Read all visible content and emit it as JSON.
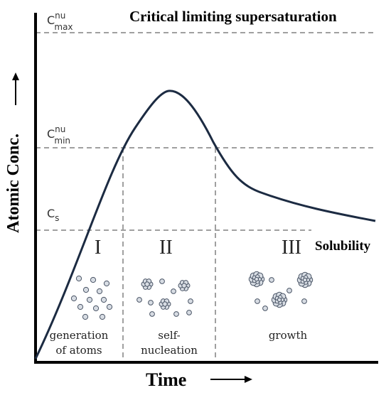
{
  "title": "Critical limiting supersaturation",
  "solubility_label": "Solubility",
  "y_axis_label": "Atomic Conc.",
  "x_axis_label": "Time",
  "levels": {
    "c_max": {
      "base": "C",
      "sup": "nu",
      "sub": "max"
    },
    "c_min": {
      "base": "C",
      "sup": "nu",
      "sub": "min"
    },
    "c_s": {
      "base": "C",
      "sub": "s"
    }
  },
  "stages": [
    {
      "numeral": "I",
      "lines": [
        "generation",
        "of atoms"
      ]
    },
    {
      "numeral": "II",
      "lines": [
        "self-",
        "nucleation"
      ]
    },
    {
      "numeral": "III",
      "lines": [
        "growth"
      ]
    }
  ],
  "colors": {
    "curve": "#1c2b42",
    "dashed": "#a0a0a0",
    "particle_fill": "#d7dce3",
    "particle_stroke": "#4a5566"
  }
}
